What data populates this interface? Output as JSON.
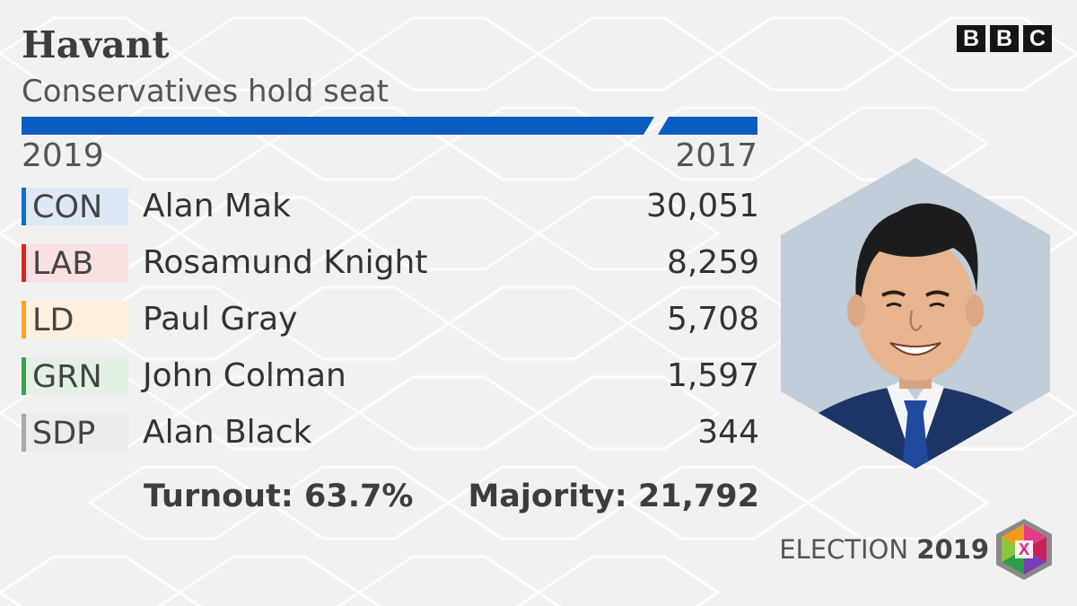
{
  "constituency": "Havant",
  "result": "Conservatives hold seat",
  "year_left": "2019",
  "year_right": "2017",
  "brand": {
    "letters": [
      "B",
      "B",
      "C"
    ]
  },
  "candidates": [
    {
      "party": "CON",
      "name": "Alan Mak",
      "votes": "30,051",
      "color": "#0a6ecf",
      "tint": "#dde9f7"
    },
    {
      "party": "LAB",
      "name": "Rosamund Knight",
      "votes": "8,259",
      "color": "#dc241f",
      "tint": "#f8e1e0"
    },
    {
      "party": "LD",
      "name": "Paul Gray",
      "votes": "5,708",
      "color": "#faa61a",
      "tint": "#fdf0dd"
    },
    {
      "party": "GRN",
      "name": "John Colman",
      "votes": "1,597",
      "color": "#3aa34a",
      "tint": "#e2f1e4"
    },
    {
      "party": "SDP",
      "name": "Alan Black",
      "votes": "344",
      "color": "#a9a9a9",
      "tint": "#ececec"
    }
  ],
  "turnout": "Turnout: 63.7%",
  "majority": "Majority: 21,792",
  "election_label": "ELECTION",
  "election_year": "2019",
  "winning_color": "#0a5cc0",
  "photo_icon": "candidate-portrait-hexagon"
}
